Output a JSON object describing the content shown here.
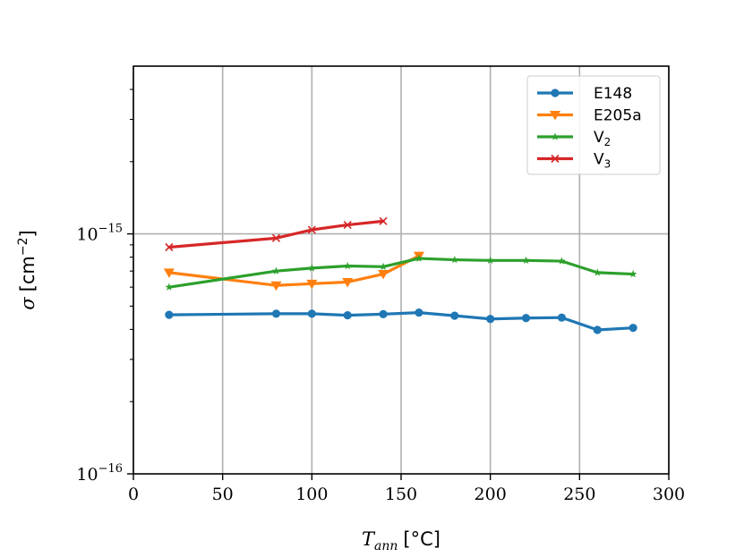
{
  "chart_data": {
    "type": "line",
    "title": "",
    "xlabel": {
      "symbol": "T",
      "subscript": "ann",
      "unit": "[°C]"
    },
    "ylabel": {
      "symbol": "σ",
      "unit_base": "[cm",
      "unit_exp": "−2",
      "unit_end": "]"
    },
    "yscale": "log",
    "xlim": [
      0,
      300
    ],
    "ylim": [
      1e-16,
      5e-15
    ],
    "grid": true,
    "legend_position": "top-right",
    "x_ticks": [
      {
        "value": 0,
        "label": "0"
      },
      {
        "value": 50,
        "label": "50"
      },
      {
        "value": 100,
        "label": "100"
      },
      {
        "value": 150,
        "label": "150"
      },
      {
        "value": 200,
        "label": "200"
      },
      {
        "value": 250,
        "label": "250"
      },
      {
        "value": 300,
        "label": "300"
      }
    ],
    "y_ticks": [
      {
        "value": 1e-16,
        "base": "10",
        "exp": "−16"
      },
      {
        "value": 1e-15,
        "base": "10",
        "exp": "−15"
      }
    ],
    "series": [
      {
        "name": "E148",
        "label_main": "E148",
        "label_sub": "",
        "color": "#1f77b4",
        "marker": "circle",
        "x": [
          20,
          80,
          100,
          120,
          140,
          160,
          180,
          200,
          220,
          240,
          260,
          280
        ],
        "y": [
          4.6e-16,
          4.65e-16,
          4.65e-16,
          4.58e-16,
          4.63e-16,
          4.7e-16,
          4.56e-16,
          4.42e-16,
          4.46e-16,
          4.48e-16,
          3.98e-16,
          4.06e-16
        ]
      },
      {
        "name": "E205a",
        "label_main": "E205a",
        "label_sub": "",
        "color": "#ff7f0e",
        "marker": "triangle-down",
        "x": [
          20,
          80,
          100,
          120,
          140,
          160
        ],
        "y": [
          6.9e-16,
          6.1e-16,
          6.2e-16,
          6.3e-16,
          6.8e-16,
          8.1e-16
        ]
      },
      {
        "name": "V2",
        "label_main": "V",
        "label_sub": "2",
        "color": "#2ca02c",
        "marker": "star",
        "x": [
          20,
          80,
          100,
          120,
          140,
          160,
          180,
          200,
          220,
          240,
          260,
          280
        ],
        "y": [
          6e-16,
          7e-16,
          7.2e-16,
          7.35e-16,
          7.3e-16,
          7.9e-16,
          7.8e-16,
          7.75e-16,
          7.75e-16,
          7.7e-16,
          6.9e-16,
          6.8e-16
        ]
      },
      {
        "name": "V3",
        "label_main": "V",
        "label_sub": "3",
        "color": "#d62728",
        "marker": "x",
        "x": [
          20,
          80,
          100,
          120,
          140
        ],
        "y": [
          8.8e-16,
          9.6e-16,
          1.04e-15,
          1.09e-15,
          1.13e-15
        ]
      }
    ]
  }
}
